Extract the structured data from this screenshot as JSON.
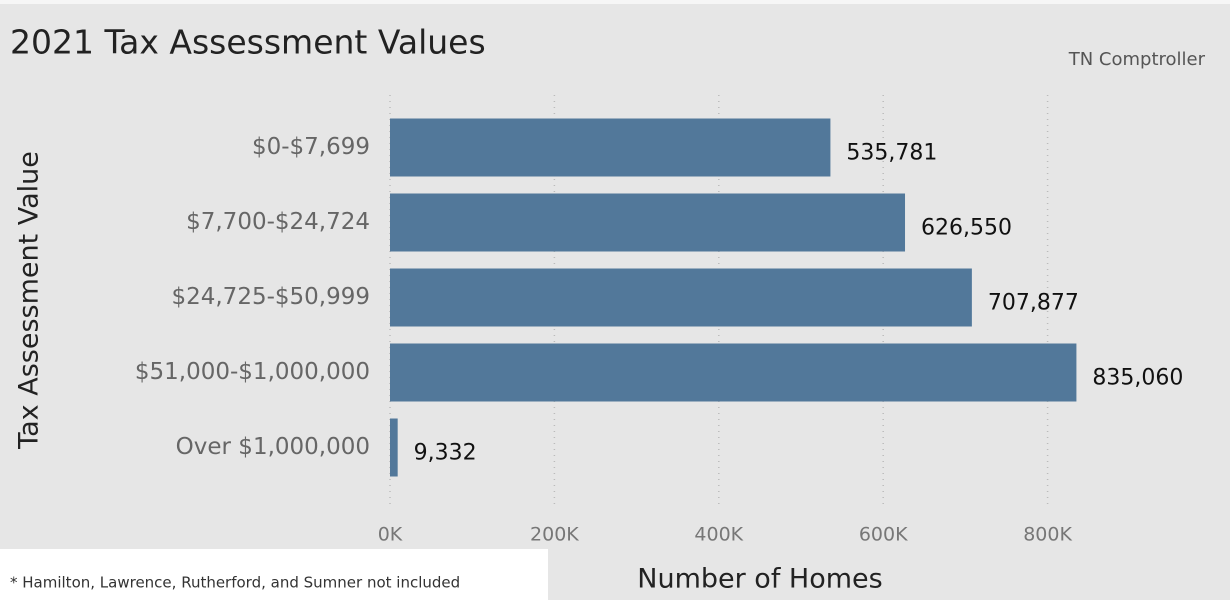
{
  "chart_data": {
    "type": "bar",
    "orientation": "horizontal",
    "title": "2021 Tax Assessment Values",
    "source": "TN Comptroller",
    "ylabel": "Tax Assessment Value",
    "xlabel": "Number of Homes",
    "footnote": "* Hamilton, Lawrence, Rutherford, and Sumner not included",
    "categories": [
      "$0-$7,699",
      "$7,700-$24,724",
      "$24,725-$50,999",
      "$51,000-$1,000,000",
      "Over $1,000,000"
    ],
    "values": [
      535781,
      626550,
      707877,
      835060,
      9332
    ],
    "value_labels": [
      "535,781",
      "626,550",
      "707,877",
      "835,060",
      "9,332"
    ],
    "color": "#52789a",
    "xlim": [
      0,
      1000000
    ],
    "xticks": [
      {
        "value": 0,
        "label": "0K"
      },
      {
        "value": 200000,
        "label": "200K"
      },
      {
        "value": 400000,
        "label": "400K"
      },
      {
        "value": 600000,
        "label": "600K"
      },
      {
        "value": 800000,
        "label": "800K"
      }
    ],
    "grid": true
  }
}
